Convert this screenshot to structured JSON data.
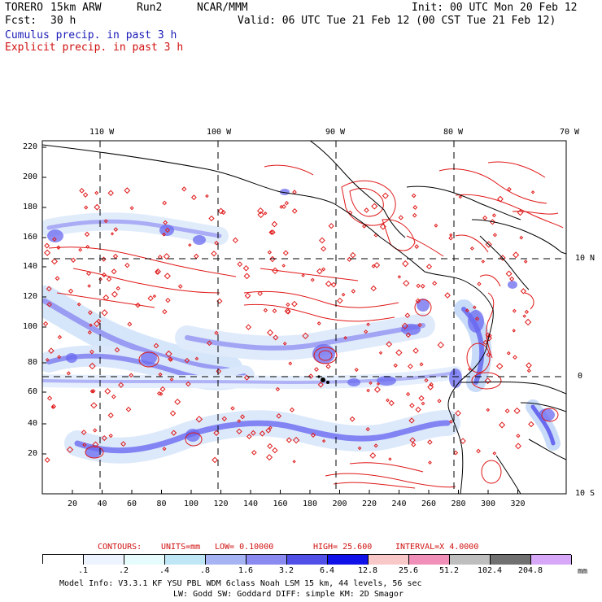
{
  "header": {
    "model": "TORERO",
    "resolution": "15km ARW",
    "run": "Run2",
    "org": "NCAR/MMM",
    "init": "Init: 00 UTC Mon 20 Feb 12",
    "fcst_label": "Fcst:",
    "fcst_value": "30 h",
    "valid": "Valid: 06 UTC Tue 21 Feb 12 (00 CST Tue 21 Feb 12)",
    "field1": "Cumulus precip. in past 3 h",
    "field2": "Explicit precip. in past 3 h"
  },
  "map": {
    "lon_labels": [
      "110 W",
      "100 W",
      "90 W",
      "80 W",
      "70 W"
    ],
    "lat_labels": [
      "10 N",
      "0",
      "10 S"
    ],
    "y_ticks": [
      "220",
      "200",
      "180",
      "160",
      "140",
      "120",
      "100",
      "80",
      "60",
      "40",
      "20"
    ],
    "x_ticks": [
      "20",
      "40",
      "60",
      "80",
      "100",
      "120",
      "140",
      "160",
      "180",
      "200",
      "220",
      "240",
      "260",
      "280",
      "300",
      "320"
    ],
    "colors": {
      "cumulus": "#6a6af0",
      "explicit": "#e01818",
      "coast": "#000000"
    }
  },
  "contours": {
    "label": "CONTOURS:",
    "units": "UNITS=mm",
    "low": "LOW= 0.10000",
    "high": "HIGH= 25.600",
    "interval": "INTERVAL=X 4.0000"
  },
  "colorbar": {
    "labels": [
      ".1",
      ".2",
      ".4",
      ".8",
      "1.6",
      "3.2",
      "6.4",
      "12.8",
      "25.6",
      "51.2",
      "102.4",
      "204.8"
    ],
    "unit": "mm",
    "colors": [
      "#ffffff",
      "#ffffff",
      "#eef4ff",
      "#e6fbfb",
      "#bfe6f5",
      "#a6b4f3",
      "#8a8af0",
      "#5050e8",
      "#1010e8",
      "#f8c8c8",
      "#f090b8",
      "#bebebe",
      "#707070",
      "#d8a8f8"
    ]
  },
  "footer": {
    "line1": "Model Info: V3.3.1   KF     YSU PBL  WDM 6class  Noah LSM  15 km,   44 levels,   56 sec",
    "line2": "LW: Godd SW: Goddard DIFF: simple KM: 2D Smagor"
  }
}
